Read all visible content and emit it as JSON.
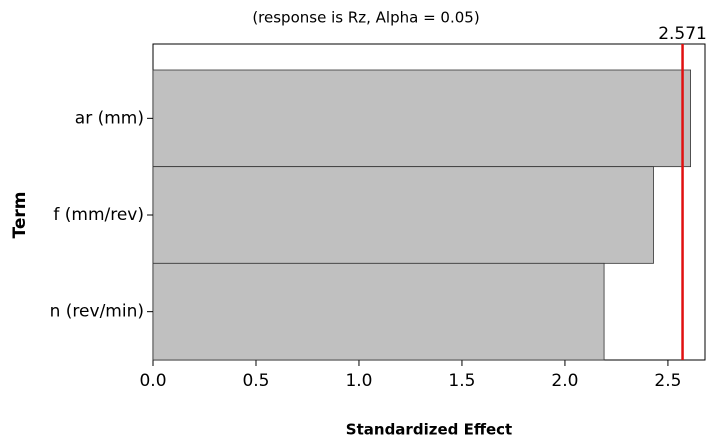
{
  "chart_data": {
    "type": "hbar",
    "subtitle": "(response is Rz, Alpha = 0.05)",
    "xlabel": "Standardized Effect",
    "ylabel": "Term",
    "categories": [
      "ar (mm)",
      "f (mm/rev)",
      "n (rev/min)"
    ],
    "values": [
      2.61,
      2.43,
      2.19
    ],
    "color": "#c0c0c0",
    "reference_line": 2.571,
    "reference_color": "#e01010",
    "xlim": [
      0,
      2.68
    ],
    "xticks": [
      {
        "value": 0,
        "label": "0.0"
      },
      0.5,
      {
        "value": 1,
        "label": "1.0"
      },
      1.5,
      {
        "value": 2,
        "label": "2.0"
      },
      2.5
    ]
  }
}
